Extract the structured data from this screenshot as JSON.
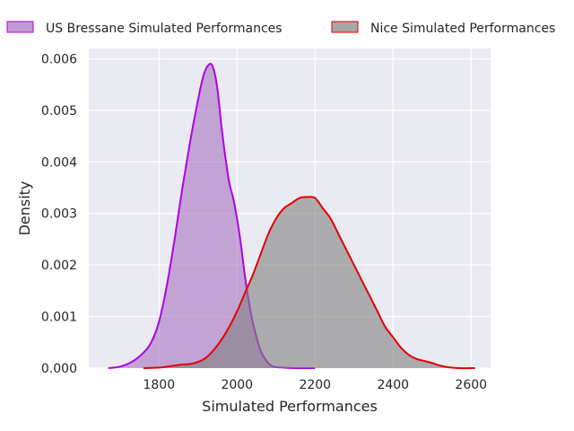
{
  "chart_data": {
    "type": "area",
    "title": "",
    "xlabel": "Simulated Performances",
    "ylabel": "Density",
    "xlim": [
      1620,
      2650
    ],
    "ylim": [
      0,
      0.0062
    ],
    "grid": true,
    "legend_position": "top, outside plot",
    "x_ticks": [
      1800,
      2000,
      2200,
      2400,
      2600
    ],
    "x_tick_labels": [
      "1800",
      "2000",
      "2200",
      "2400",
      "2600"
    ],
    "y_ticks": [
      0,
      0.001,
      0.002,
      0.003,
      0.004,
      0.005,
      0.006
    ],
    "y_tick_labels": [
      "0.000",
      "0.001",
      "0.002",
      "0.003",
      "0.004",
      "0.005",
      "0.006"
    ],
    "series": [
      {
        "name": "US Bressane Simulated Performances",
        "line_color": "#b000e6",
        "fill_color": "#9b59b6",
        "x": [
          1670,
          1700,
          1730,
          1760,
          1780,
          1800,
          1820,
          1840,
          1860,
          1880,
          1900,
          1915,
          1930,
          1940,
          1950,
          1960,
          1970,
          1980,
          1990,
          2000,
          2010,
          2020,
          2030,
          2040,
          2050,
          2060,
          2070,
          2080,
          2090,
          2100,
          2120,
          2150,
          2200
        ],
        "y": [
          0,
          3e-05,
          0.00012,
          0.0003,
          0.0005,
          0.0009,
          0.0016,
          0.0025,
          0.0035,
          0.0044,
          0.0052,
          0.0057,
          0.0059,
          0.0058,
          0.0054,
          0.0047,
          0.0041,
          0.0036,
          0.0033,
          0.0029,
          0.0024,
          0.0018,
          0.0013,
          0.0009,
          0.0006,
          0.00035,
          0.0002,
          0.0001,
          4e-05,
          2e-05,
          1e-05,
          0,
          0
        ]
      },
      {
        "name": "Nice Simulated Performances",
        "line_color": "#e60000",
        "fill_color": "#808080",
        "x": [
          1760,
          1800,
          1830,
          1860,
          1880,
          1900,
          1920,
          1940,
          1960,
          1980,
          2000,
          2020,
          2040,
          2060,
          2080,
          2100,
          2120,
          2140,
          2160,
          2180,
          2200,
          2220,
          2240,
          2260,
          2280,
          2300,
          2320,
          2340,
          2360,
          2380,
          2400,
          2420,
          2440,
          2460,
          2480,
          2500,
          2520,
          2540,
          2570,
          2610
        ],
        "y": [
          0,
          1e-05,
          4e-05,
          7e-05,
          8e-05,
          0.00012,
          0.0002,
          0.00035,
          0.00055,
          0.0008,
          0.0011,
          0.00145,
          0.0018,
          0.0022,
          0.0026,
          0.0029,
          0.0031,
          0.0032,
          0.0033,
          0.00332,
          0.0033,
          0.0031,
          0.0029,
          0.0026,
          0.0023,
          0.002,
          0.0017,
          0.0014,
          0.0011,
          0.0008,
          0.0006,
          0.0004,
          0.00026,
          0.00018,
          0.00014,
          0.0001,
          5e-05,
          2e-05,
          0,
          0
        ]
      }
    ]
  }
}
